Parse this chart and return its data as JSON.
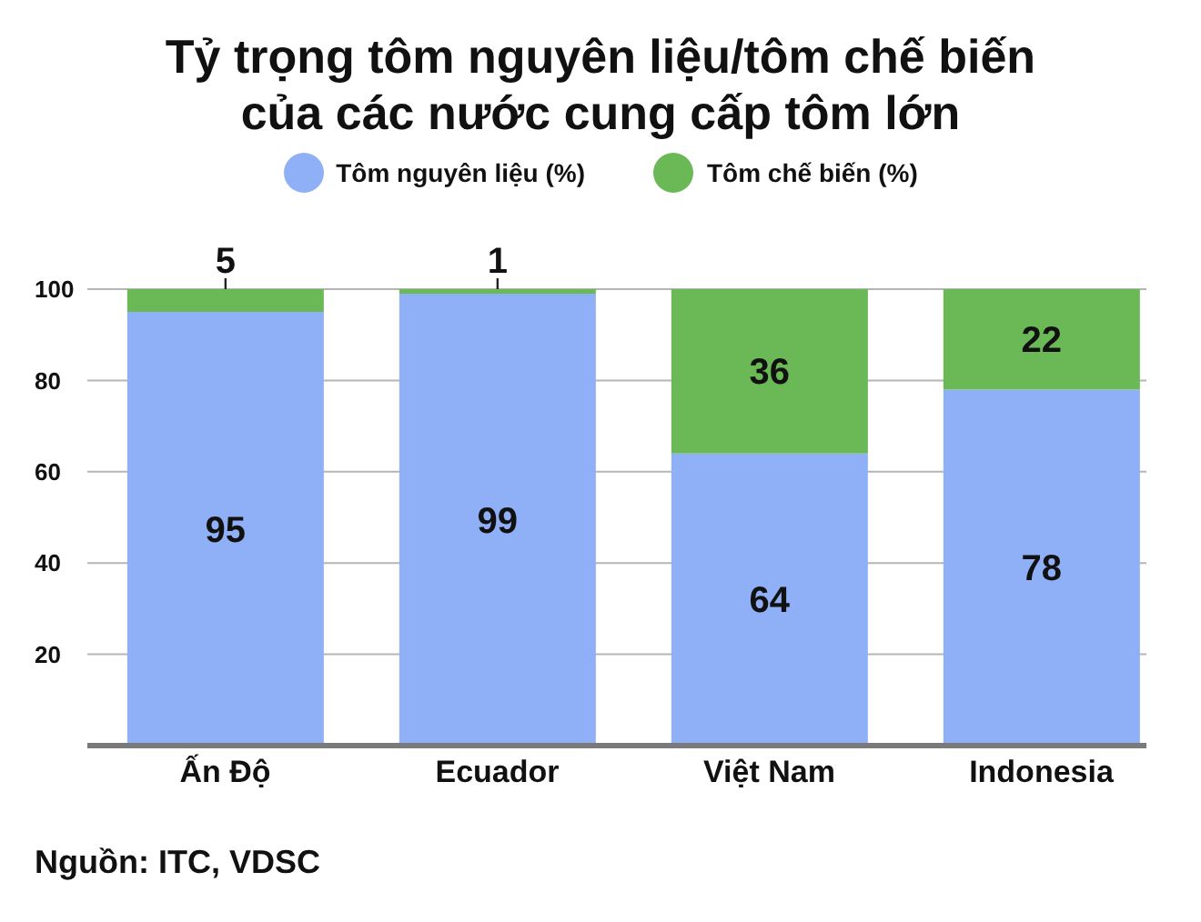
{
  "chart_data": {
    "type": "bar",
    "title": "Tỷ trọng tôm nguyên liệu/tôm chế biến\ncủa các nước cung cấp tôm lớn",
    "categories": [
      "Ấn Độ",
      "Ecuador",
      "Việt Nam",
      "Indonesia"
    ],
    "series": [
      {
        "name": "Tôm nguyên liệu (%)",
        "color": "#8fb0f6",
        "values": [
          95,
          99,
          64,
          78
        ]
      },
      {
        "name": "Tôm chế biến (%)",
        "color": "#6ab956",
        "values": [
          5,
          1,
          36,
          22
        ]
      }
    ],
    "stacked": true,
    "ylim": [
      0,
      100
    ],
    "yticks": [
      20,
      40,
      60,
      80,
      100
    ],
    "grid": "y",
    "legend": "top",
    "data_labels": true,
    "annotations": [
      "Nguồn: ITC, VDSC"
    ]
  }
}
